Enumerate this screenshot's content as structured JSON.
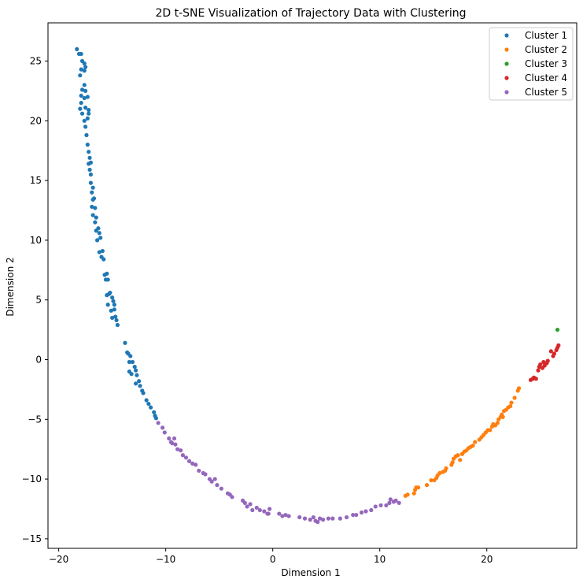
{
  "chart_data": {
    "type": "scatter",
    "title": "2D t-SNE Visualization of Trajectory Data with Clustering",
    "xlabel": "Dimension 1",
    "ylabel": "Dimension 2",
    "xlim": [
      -21,
      28.4
    ],
    "ylim": [
      -15.8,
      28.2
    ],
    "xticks": [
      -20,
      -10,
      0,
      10,
      20
    ],
    "yticks": [
      -15,
      -10,
      -5,
      0,
      5,
      10,
      15,
      20,
      25
    ],
    "tick_labels_x": [
      "−20",
      "−10",
      "0",
      "10",
      "20"
    ],
    "tick_labels_y": [
      "−15",
      "−10",
      "−5",
      "0",
      "5",
      "10",
      "15",
      "20",
      "25"
    ],
    "grid": false,
    "legend_position": "top-right",
    "series": [
      {
        "name": "Cluster 1",
        "color": "#1f77b4",
        "points": [
          [
            -18.3,
            26.0
          ],
          [
            -18.1,
            25.6
          ],
          [
            -17.9,
            25.6
          ],
          [
            -17.8,
            25.0
          ],
          [
            -17.6,
            24.8
          ],
          [
            -17.9,
            24.3
          ],
          [
            -17.6,
            24.2
          ],
          [
            -17.5,
            24.5
          ],
          [
            -18.0,
            23.8
          ],
          [
            -17.6,
            23.0
          ],
          [
            -17.8,
            22.6
          ],
          [
            -17.5,
            22.5
          ],
          [
            -17.3,
            22.0
          ],
          [
            -17.9,
            22.1
          ],
          [
            -17.6,
            21.9
          ],
          [
            -17.9,
            21.5
          ],
          [
            -17.5,
            21.1
          ],
          [
            -17.2,
            20.9
          ],
          [
            -18.0,
            21.0
          ],
          [
            -17.8,
            20.6
          ],
          [
            -17.6,
            20.0
          ],
          [
            -17.3,
            20.2
          ],
          [
            -17.2,
            20.6
          ],
          [
            -17.5,
            19.5
          ],
          [
            -17.4,
            18.8
          ],
          [
            -17.3,
            18.0
          ],
          [
            -17.2,
            17.4
          ],
          [
            -17.1,
            16.9
          ],
          [
            -17.2,
            16.4
          ],
          [
            -17.0,
            16.5
          ],
          [
            -17.1,
            15.9
          ],
          [
            -17.0,
            15.5
          ],
          [
            -17.0,
            14.8
          ],
          [
            -16.8,
            14.4
          ],
          [
            -16.9,
            14.0
          ],
          [
            -16.8,
            13.4
          ],
          [
            -16.7,
            13.5
          ],
          [
            -16.9,
            12.8
          ],
          [
            -16.6,
            12.7
          ],
          [
            -16.8,
            12.1
          ],
          [
            -16.5,
            11.9
          ],
          [
            -16.6,
            11.5
          ],
          [
            -16.3,
            11.0
          ],
          [
            -16.5,
            10.8
          ],
          [
            -16.2,
            10.6
          ],
          [
            -16.4,
            10.0
          ],
          [
            -16.1,
            10.2
          ],
          [
            -16.2,
            9.0
          ],
          [
            -15.9,
            9.1
          ],
          [
            -16.0,
            8.6
          ],
          [
            -15.8,
            8.4
          ],
          [
            -15.7,
            7.1
          ],
          [
            -15.5,
            7.2
          ],
          [
            -15.6,
            6.7
          ],
          [
            -15.4,
            6.7
          ],
          [
            -15.5,
            5.4
          ],
          [
            -15.3,
            5.5
          ],
          [
            -15.2,
            5.6
          ],
          [
            -15.0,
            5.2
          ],
          [
            -15.4,
            4.6
          ],
          [
            -14.9,
            4.9
          ],
          [
            -14.8,
            4.6
          ],
          [
            -15.1,
            4.1
          ],
          [
            -14.8,
            4.2
          ],
          [
            -14.7,
            3.6
          ],
          [
            -15.0,
            3.5
          ],
          [
            -14.6,
            3.3
          ],
          [
            -14.5,
            2.9
          ],
          [
            -13.8,
            1.4
          ],
          [
            -13.6,
            0.6
          ],
          [
            -13.5,
            0.5
          ],
          [
            -13.3,
            0.3
          ],
          [
            -13.4,
            -0.2
          ],
          [
            -13.1,
            -0.2
          ],
          [
            -12.9,
            -0.6
          ],
          [
            -12.8,
            -0.9
          ],
          [
            -13.4,
            -1.0
          ],
          [
            -12.7,
            -1.3
          ],
          [
            -13.2,
            -1.2
          ],
          [
            -12.5,
            -1.8
          ],
          [
            -12.8,
            -2.0
          ],
          [
            -12.4,
            -2.2
          ],
          [
            -12.2,
            -2.6
          ],
          [
            -12.1,
            -2.8
          ],
          [
            -11.8,
            -3.4
          ],
          [
            -11.6,
            -3.7
          ],
          [
            -11.4,
            -4.0
          ],
          [
            -11.1,
            -4.4
          ],
          [
            -11.0,
            -4.7
          ],
          [
            -10.9,
            -4.9
          ]
        ]
      },
      {
        "name": "Cluster 2",
        "color": "#ff7f0e",
        "points": [
          [
            12.4,
            -11.4
          ],
          [
            12.6,
            -11.3
          ],
          [
            13.2,
            -11.2
          ],
          [
            13.3,
            -10.9
          ],
          [
            13.4,
            -10.7
          ],
          [
            13.6,
            -10.7
          ],
          [
            14.4,
            -10.5
          ],
          [
            14.8,
            -10.1
          ],
          [
            15.1,
            -10.1
          ],
          [
            15.3,
            -9.9
          ],
          [
            15.4,
            -9.7
          ],
          [
            15.6,
            -9.5
          ],
          [
            15.9,
            -9.4
          ],
          [
            16.1,
            -9.3
          ],
          [
            16.2,
            -9.1
          ],
          [
            16.7,
            -8.8
          ],
          [
            16.8,
            -8.6
          ],
          [
            16.9,
            -8.3
          ],
          [
            17.1,
            -8.1
          ],
          [
            17.3,
            -8.0
          ],
          [
            17.5,
            -8.4
          ],
          [
            17.7,
            -7.9
          ],
          [
            17.9,
            -7.7
          ],
          [
            18.1,
            -7.6
          ],
          [
            18.3,
            -7.4
          ],
          [
            18.5,
            -7.3
          ],
          [
            18.7,
            -7.2
          ],
          [
            18.9,
            -6.9
          ],
          [
            19.3,
            -6.7
          ],
          [
            19.5,
            -6.5
          ],
          [
            19.7,
            -6.3
          ],
          [
            19.9,
            -6.1
          ],
          [
            20.1,
            -5.9
          ],
          [
            20.3,
            -5.9
          ],
          [
            20.5,
            -5.6
          ],
          [
            20.6,
            -5.4
          ],
          [
            20.8,
            -5.5
          ],
          [
            21.0,
            -5.3
          ],
          [
            21.1,
            -5.0
          ],
          [
            21.3,
            -4.8
          ],
          [
            21.4,
            -4.6
          ],
          [
            21.5,
            -4.8
          ],
          [
            21.6,
            -4.3
          ],
          [
            21.8,
            -4.2
          ],
          [
            22.0,
            -4.0
          ],
          [
            22.2,
            -3.9
          ],
          [
            22.3,
            -3.6
          ],
          [
            22.6,
            -3.2
          ],
          [
            22.9,
            -2.6
          ],
          [
            23.0,
            -2.4
          ]
        ]
      },
      {
        "name": "Cluster 3",
        "color": "#2ca02c",
        "points": [
          [
            26.6,
            2.5
          ]
        ]
      },
      {
        "name": "Cluster 4",
        "color": "#d62728",
        "points": [
          [
            24.1,
            -1.7
          ],
          [
            24.3,
            -1.6
          ],
          [
            24.4,
            -1.5
          ],
          [
            24.6,
            -1.6
          ],
          [
            24.8,
            -0.9
          ],
          [
            24.9,
            -0.6
          ],
          [
            25.0,
            -0.4
          ],
          [
            25.2,
            -0.7
          ],
          [
            25.3,
            -0.2
          ],
          [
            25.4,
            -0.5
          ],
          [
            25.6,
            -0.3
          ],
          [
            25.7,
            -0.1
          ],
          [
            26.0,
            0.7
          ],
          [
            26.2,
            0.3
          ],
          [
            26.3,
            0.5
          ],
          [
            26.5,
            0.8
          ],
          [
            26.6,
            1.0
          ],
          [
            26.7,
            1.2
          ]
        ]
      },
      {
        "name": "Cluster 5",
        "color": "#9467bd",
        "points": [
          [
            -10.7,
            -5.3
          ],
          [
            -10.3,
            -5.7
          ],
          [
            -10.1,
            -6.1
          ],
          [
            -9.7,
            -6.6
          ],
          [
            -9.5,
            -6.9
          ],
          [
            -9.4,
            -7.0
          ],
          [
            -9.2,
            -6.6
          ],
          [
            -9.1,
            -7.1
          ],
          [
            -8.9,
            -7.5
          ],
          [
            -8.6,
            -7.6
          ],
          [
            -8.4,
            -8.0
          ],
          [
            -8.1,
            -8.2
          ],
          [
            -7.8,
            -8.5
          ],
          [
            -7.5,
            -8.7
          ],
          [
            -7.2,
            -8.8
          ],
          [
            -6.9,
            -9.3
          ],
          [
            -6.5,
            -9.5
          ],
          [
            -6.3,
            -9.6
          ],
          [
            -5.9,
            -10.0
          ],
          [
            -5.7,
            -10.2
          ],
          [
            -5.4,
            -10.0
          ],
          [
            -5.2,
            -10.5
          ],
          [
            -4.8,
            -10.8
          ],
          [
            -4.2,
            -11.2
          ],
          [
            -4.0,
            -11.3
          ],
          [
            -3.8,
            -11.5
          ],
          [
            -2.8,
            -11.8
          ],
          [
            -2.6,
            -12.0
          ],
          [
            -2.4,
            -12.3
          ],
          [
            -2.1,
            -12.1
          ],
          [
            -1.9,
            -12.6
          ],
          [
            -1.5,
            -12.4
          ],
          [
            -1.2,
            -12.6
          ],
          [
            -0.8,
            -12.7
          ],
          [
            -0.5,
            -12.9
          ],
          [
            -0.3,
            -12.5
          ],
          [
            -0.4,
            -12.9
          ],
          [
            0.6,
            -12.9
          ],
          [
            0.9,
            -13.1
          ],
          [
            1.2,
            -13.0
          ],
          [
            1.5,
            -13.1
          ],
          [
            2.5,
            -13.2
          ],
          [
            3.0,
            -13.3
          ],
          [
            3.5,
            -13.4
          ],
          [
            3.8,
            -13.2
          ],
          [
            4.0,
            -13.5
          ],
          [
            4.2,
            -13.6
          ],
          [
            4.4,
            -13.3
          ],
          [
            4.7,
            -13.4
          ],
          [
            5.2,
            -13.3
          ],
          [
            5.6,
            -13.3
          ],
          [
            6.3,
            -13.3
          ],
          [
            6.9,
            -13.2
          ],
          [
            7.5,
            -13.0
          ],
          [
            7.8,
            -13.0
          ],
          [
            8.3,
            -12.8
          ],
          [
            8.7,
            -12.7
          ],
          [
            9.2,
            -12.6
          ],
          [
            9.6,
            -12.3
          ],
          [
            10.1,
            -12.2
          ],
          [
            10.6,
            -12.2
          ],
          [
            10.9,
            -12.0
          ],
          [
            11.0,
            -11.7
          ],
          [
            11.3,
            -11.9
          ],
          [
            11.5,
            -11.8
          ],
          [
            11.8,
            -12.0
          ]
        ]
      }
    ]
  }
}
